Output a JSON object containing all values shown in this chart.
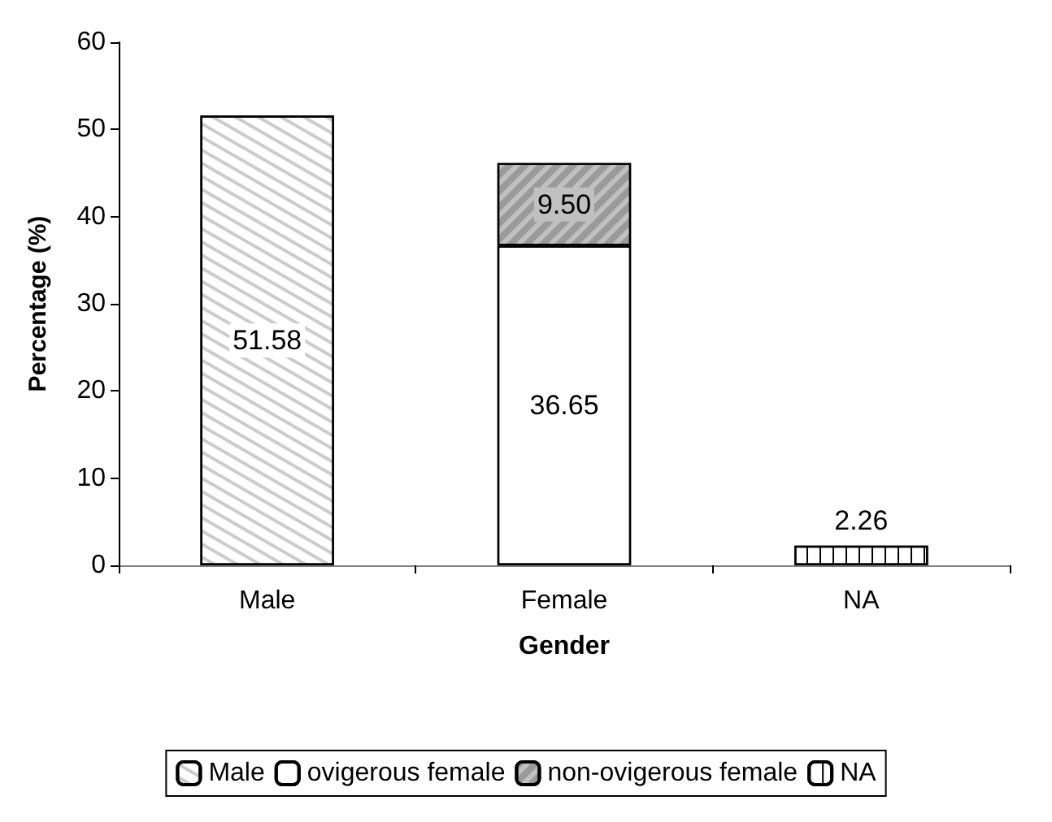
{
  "chart_data": {
    "type": "bar",
    "stacked": true,
    "xlabel": "Gender",
    "ylabel": "Percentage (%)",
    "categories": [
      "Male",
      "Female",
      "NA"
    ],
    "series": [
      {
        "name": "Male",
        "color": "#ffffff",
        "values": [
          51.58,
          null,
          null
        ],
        "value_labels": [
          "51.58",
          null,
          null
        ]
      },
      {
        "name": "ovigerous female",
        "color": "#ffffff",
        "values": [
          null,
          36.65,
          null
        ],
        "value_labels": [
          null,
          "36.65",
          null
        ]
      },
      {
        "name": "non-ovigerous female",
        "color": "#c0c0c0",
        "values": [
          null,
          9.5,
          null
        ],
        "value_labels": [
          null,
          "9.50",
          null
        ]
      },
      {
        "name": "NA",
        "color": "#ffffff",
        "values": [
          null,
          null,
          2.26
        ],
        "value_labels": [
          null,
          null,
          "2.26"
        ]
      }
    ],
    "ylim": [
      0,
      60
    ],
    "yticks": [
      0,
      10,
      20,
      30,
      40,
      50,
      60
    ],
    "grid": false,
    "legend": "bottom"
  }
}
